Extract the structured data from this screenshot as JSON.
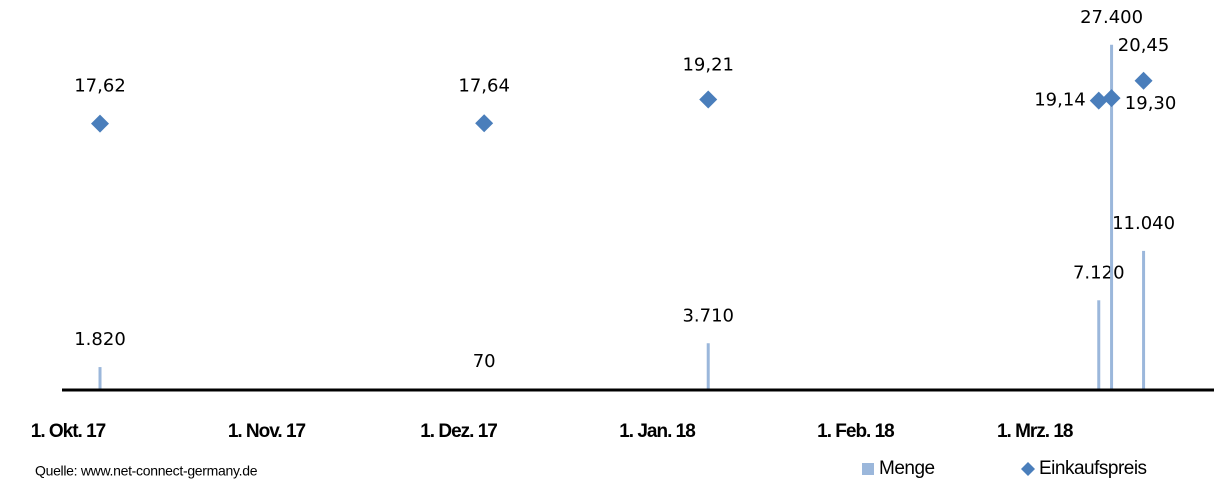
{
  "chart_data": {
    "type": "combo",
    "x": [
      "2017-10-06",
      "2017-12-05",
      "2018-01-09",
      "2018-03-11",
      "2018-03-13",
      "2018-03-18"
    ],
    "series": [
      {
        "name": "Menge",
        "type": "bar",
        "color": "#9bb7db",
        "values": [
          1820,
          70,
          3710,
          7120,
          27400,
          11040
        ],
        "value_labels": [
          "1.820",
          "70",
          "3.710",
          "7.120",
          "27.400",
          "11.040"
        ]
      },
      {
        "name": "Einkaufspreis",
        "type": "scatter",
        "axis": "y2",
        "color": "#4a7ebb",
        "values": [
          17.62,
          17.64,
          19.21,
          19.14,
          19.3,
          20.45
        ],
        "value_labels": [
          "17,62",
          "17,64",
          "19,21",
          "19,14",
          "19,30",
          "20,45"
        ]
      }
    ],
    "xlim": [
      "2017-10-01",
      "2018-03-29"
    ],
    "xticks": [
      {
        "value": "2017-10-01",
        "label": "1. Okt. 17"
      },
      {
        "value": "2017-11-01",
        "label": "1. Nov. 17"
      },
      {
        "value": "2017-12-01",
        "label": "1. Dez. 17"
      },
      {
        "value": "2018-01-01",
        "label": "1. Jan. 18"
      },
      {
        "value": "2018-02-01",
        "label": "1. Feb. 18"
      },
      {
        "value": "2018-03-01",
        "label": "1. Mrz. 18"
      }
    ],
    "ylim": [
      0,
      30000
    ],
    "y2lim": [
      0,
      25
    ],
    "legend": "bottom-right",
    "source": "Quelle: www.net-connect-germany.de"
  }
}
